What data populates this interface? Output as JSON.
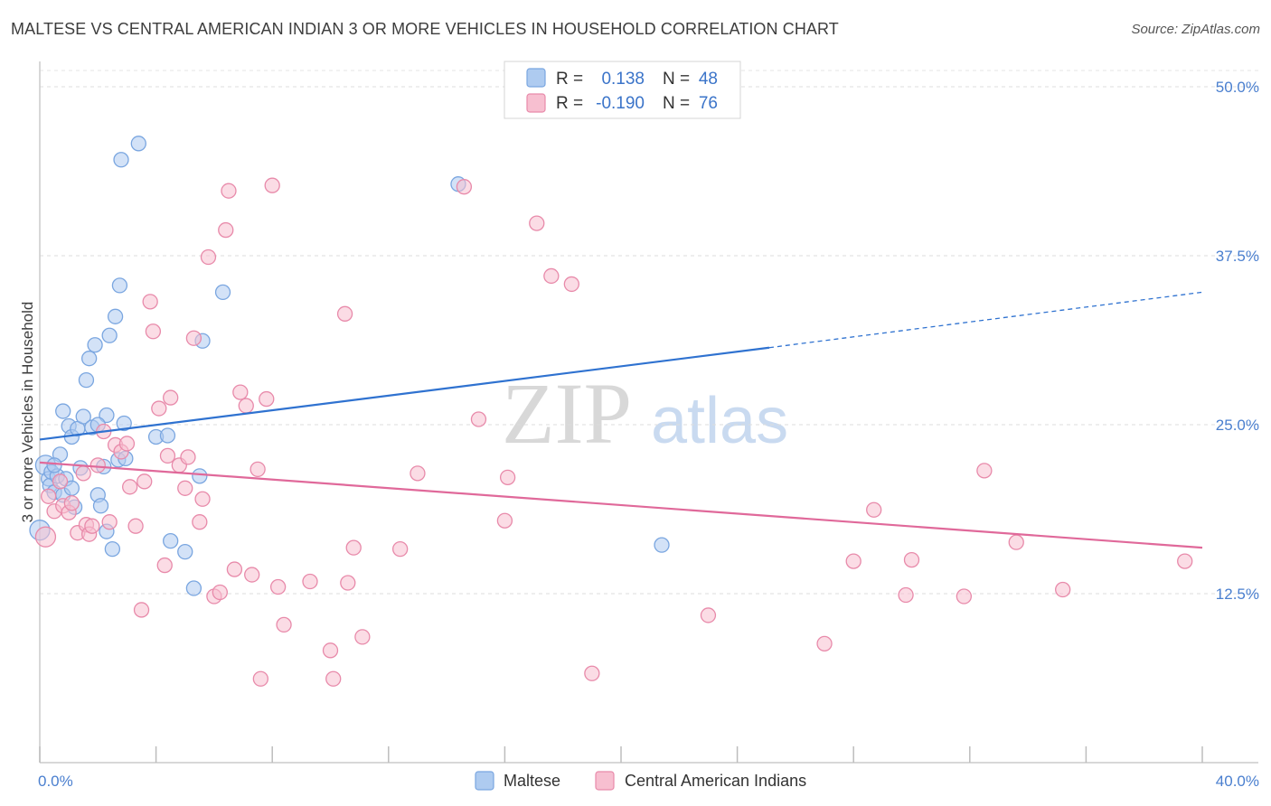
{
  "header": {
    "title": "MALTESE VS CENTRAL AMERICAN INDIAN 3 OR MORE VEHICLES IN HOUSEHOLD CORRELATION CHART",
    "source": "Source: ZipAtlas.com"
  },
  "watermark": {
    "zip": "ZIP",
    "atlas": "atlas"
  },
  "legend_top": {
    "rows": [
      {
        "r_label": "R =",
        "r_value": "0.138",
        "n_label": "N =",
        "n_value": "48",
        "color": "#aecbf0",
        "stroke": "#7aa6e0"
      },
      {
        "r_label": "R =",
        "r_value": "-0.190",
        "n_label": "N =",
        "n_value": "76",
        "color": "#f7bfd0",
        "stroke": "#e88aaa"
      }
    ]
  },
  "legend_bottom": {
    "items": [
      {
        "label": "Maltese",
        "color": "#aecbf0",
        "stroke": "#7aa6e0"
      },
      {
        "label": "Central American Indians",
        "color": "#f7bfd0",
        "stroke": "#e88aaa"
      }
    ]
  },
  "chart_data": {
    "type": "scatter",
    "title": "MALTESE VS CENTRAL AMERICAN INDIAN 3 OR MORE VEHICLES IN HOUSEHOLD CORRELATION CHART",
    "xlabel": "",
    "ylabel": "3 or more Vehicles in Household",
    "xlim": [
      0,
      40
    ],
    "ylim": [
      0,
      50
    ],
    "x_tick_labels": [
      "0.0%",
      "40.0%"
    ],
    "y_tick_values": [
      12.5,
      25.0,
      37.5,
      50.0
    ],
    "y_tick_labels": [
      "12.5%",
      "25.0%",
      "37.5%",
      "50.0%"
    ],
    "grid": "horizontal dashed",
    "legend_position": "top-center",
    "series": [
      {
        "name": "Maltese",
        "color": "#aecbf0",
        "stroke": "#7aa6e0",
        "line_color": "#2f72d0",
        "trend": {
          "x_solid": [
            0,
            25.1
          ],
          "y_solid": [
            23.9,
            30.7
          ],
          "x_dashed": [
            25.1,
            40
          ],
          "y_dashed": [
            30.7,
            34.8
          ]
        },
        "points": [
          [
            0.2,
            22.0
          ],
          [
            0.3,
            21.0
          ],
          [
            0.35,
            20.5
          ],
          [
            0.4,
            21.5
          ],
          [
            0.5,
            20.0
          ],
          [
            0.6,
            21.2
          ],
          [
            0.7,
            22.8
          ],
          [
            0.8,
            26.0
          ],
          [
            1.0,
            24.9
          ],
          [
            1.1,
            24.1
          ],
          [
            1.3,
            24.7
          ],
          [
            1.5,
            25.6
          ],
          [
            1.6,
            28.3
          ],
          [
            1.7,
            29.9
          ],
          [
            1.8,
            24.8
          ],
          [
            1.9,
            30.9
          ],
          [
            2.0,
            19.8
          ],
          [
            2.1,
            19.0
          ],
          [
            2.2,
            21.9
          ],
          [
            2.3,
            25.7
          ],
          [
            2.4,
            31.6
          ],
          [
            2.5,
            15.8
          ],
          [
            2.6,
            33.0
          ],
          [
            2.7,
            22.4
          ],
          [
            2.75,
            35.3
          ],
          [
            2.8,
            44.6
          ],
          [
            2.9,
            25.1
          ],
          [
            2.95,
            22.5
          ],
          [
            3.4,
            45.8
          ],
          [
            4.0,
            24.1
          ],
          [
            4.4,
            24.2
          ],
          [
            4.5,
            16.4
          ],
          [
            5.0,
            15.6
          ],
          [
            5.3,
            12.9
          ],
          [
            5.5,
            21.2
          ],
          [
            5.6,
            31.2
          ],
          [
            6.3,
            34.8
          ],
          [
            14.4,
            42.8
          ],
          [
            21.4,
            16.1
          ],
          [
            2.3,
            17.1
          ],
          [
            0.8,
            19.8
          ],
          [
            1.2,
            18.9
          ],
          [
            0.9,
            21.0
          ],
          [
            1.4,
            21.8
          ],
          [
            2.0,
            25.0
          ],
          [
            0.0,
            17.2
          ],
          [
            0.5,
            22.0
          ],
          [
            1.1,
            20.3
          ]
        ]
      },
      {
        "name": "Central American Indians",
        "color": "#f7bfd0",
        "stroke": "#e88aaa",
        "line_color": "#e0699a",
        "trend": {
          "x_solid": [
            0,
            40
          ],
          "y_solid": [
            22.2,
            15.9
          ]
        },
        "points": [
          [
            0.2,
            16.7
          ],
          [
            0.3,
            19.7
          ],
          [
            0.5,
            18.6
          ],
          [
            0.7,
            20.8
          ],
          [
            0.8,
            19.0
          ],
          [
            1.0,
            18.5
          ],
          [
            1.1,
            19.2
          ],
          [
            1.3,
            17.0
          ],
          [
            1.5,
            21.4
          ],
          [
            1.6,
            17.6
          ],
          [
            1.7,
            16.9
          ],
          [
            1.8,
            17.5
          ],
          [
            2.0,
            22.0
          ],
          [
            2.2,
            24.5
          ],
          [
            2.4,
            17.8
          ],
          [
            2.6,
            23.5
          ],
          [
            2.8,
            23.0
          ],
          [
            3.0,
            23.6
          ],
          [
            3.1,
            20.4
          ],
          [
            3.3,
            17.5
          ],
          [
            3.5,
            11.3
          ],
          [
            3.6,
            20.8
          ],
          [
            3.8,
            34.1
          ],
          [
            3.9,
            31.9
          ],
          [
            4.1,
            26.2
          ],
          [
            4.3,
            14.6
          ],
          [
            4.4,
            22.7
          ],
          [
            4.5,
            27.0
          ],
          [
            4.8,
            22.0
          ],
          [
            5.0,
            20.3
          ],
          [
            5.1,
            22.6
          ],
          [
            5.3,
            31.4
          ],
          [
            5.5,
            17.8
          ],
          [
            5.6,
            19.5
          ],
          [
            5.8,
            37.4
          ],
          [
            6.0,
            12.3
          ],
          [
            6.2,
            12.6
          ],
          [
            6.4,
            39.4
          ],
          [
            6.5,
            42.3
          ],
          [
            6.7,
            14.3
          ],
          [
            6.9,
            27.4
          ],
          [
            7.1,
            26.4
          ],
          [
            7.3,
            13.9
          ],
          [
            7.5,
            21.7
          ],
          [
            7.6,
            6.2
          ],
          [
            7.8,
            26.9
          ],
          [
            8.0,
            42.7
          ],
          [
            8.2,
            13.0
          ],
          [
            8.4,
            10.2
          ],
          [
            9.3,
            13.4
          ],
          [
            10.0,
            8.3
          ],
          [
            10.1,
            6.2
          ],
          [
            10.5,
            33.2
          ],
          [
            10.6,
            13.3
          ],
          [
            10.8,
            15.9
          ],
          [
            11.1,
            9.3
          ],
          [
            12.4,
            15.8
          ],
          [
            13.0,
            21.4
          ],
          [
            14.6,
            42.6
          ],
          [
            15.1,
            25.4
          ],
          [
            16.0,
            17.9
          ],
          [
            16.1,
            21.1
          ],
          [
            17.1,
            39.9
          ],
          [
            17.6,
            36.0
          ],
          [
            18.3,
            35.4
          ],
          [
            19.0,
            6.6
          ],
          [
            23.0,
            10.9
          ],
          [
            27.0,
            8.8
          ],
          [
            28.0,
            14.9
          ],
          [
            28.7,
            18.7
          ],
          [
            29.8,
            12.4
          ],
          [
            30.0,
            15.0
          ],
          [
            31.8,
            12.3
          ],
          [
            32.5,
            21.6
          ],
          [
            33.6,
            16.3
          ],
          [
            35.2,
            12.8
          ],
          [
            39.4,
            14.9
          ]
        ]
      }
    ]
  }
}
